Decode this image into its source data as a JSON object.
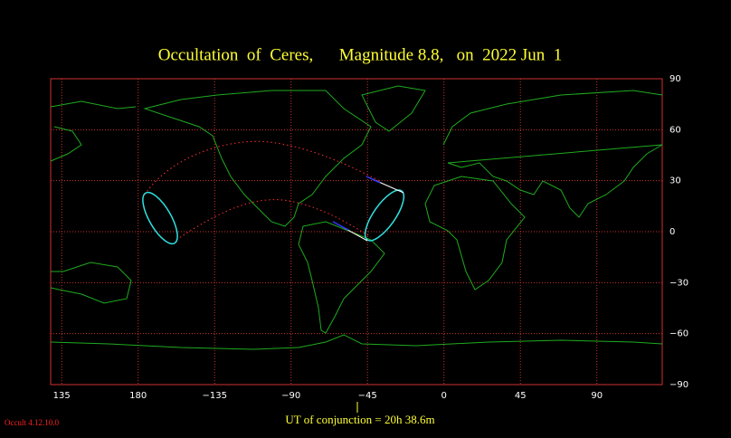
{
  "map": {
    "title": "Occultation  of  Ceres,      Magnitude 8.8,   on  2022 Jun  1",
    "xlim": [
      128.5,
      488.5
    ],
    "ylim": [
      -90,
      90
    ],
    "xticks": [
      {
        "value": 135,
        "label": "135"
      },
      {
        "value": 180,
        "label": "180"
      },
      {
        "value": -135,
        "label": "−135"
      },
      {
        "value": -90,
        "label": "−90"
      },
      {
        "value": -45,
        "label": "−45"
      },
      {
        "value": 0,
        "label": "0"
      },
      {
        "value": 45,
        "label": "45"
      },
      {
        "value": 90,
        "label": "90"
      }
    ],
    "yticks": [
      90,
      60,
      30,
      0,
      {
        "value": -30,
        "label": "−30"
      },
      {
        "value": -60,
        "label": "−60"
      },
      {
        "value": -90,
        "label": "−90"
      }
    ],
    "grid": true,
    "conjunction_label": "UT of conjunction = 20h 38.6m",
    "version": "Occult 4.12.10.0"
  }
}
